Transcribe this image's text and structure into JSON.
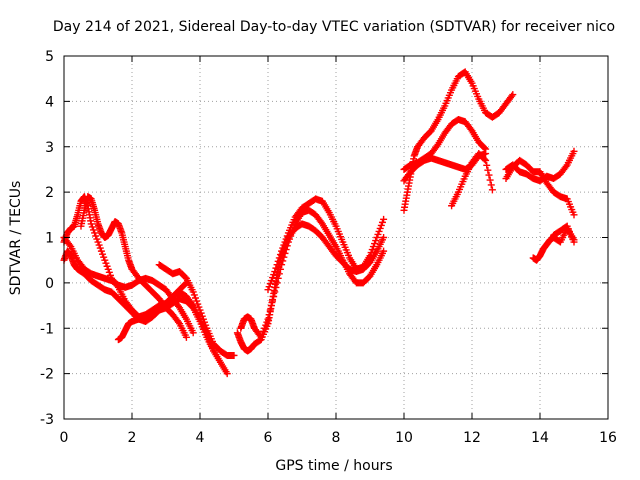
{
  "chart_data": {
    "type": "scatter",
    "title": "Day 214 of 2021, Sidereal Day-to-day VTEC variation (SDTVAR) for receiver nico",
    "xlabel": "GPS time / hours",
    "ylabel": "SDTVAR / TECUs",
    "xlim": [
      0,
      16
    ],
    "ylim": [
      -3,
      5
    ],
    "xticks": [
      "0",
      "2",
      "4",
      "6",
      "8",
      "10",
      "12",
      "14",
      "16"
    ],
    "yticks": [
      "-3",
      "-2",
      "-1",
      "0",
      "1",
      "2",
      "3",
      "4",
      "5"
    ],
    "grid": true,
    "legend": "none",
    "marker": "+",
    "color": "#ff0000",
    "series": [
      {
        "x": [
          0.0,
          0.1,
          0.2,
          0.3,
          0.4,
          0.5,
          0.6,
          0.7,
          0.8,
          1.0,
          1.2,
          1.4,
          1.6,
          1.8,
          2.0,
          2.2,
          2.4,
          2.6,
          2.8,
          3.0,
          3.2,
          3.4,
          3.6,
          3.8,
          4.0,
          4.2,
          4.4
        ],
        "y": [
          0.9,
          1.1,
          1.2,
          1.25,
          1.5,
          1.8,
          1.9,
          1.7,
          1.3,
          0.9,
          0.5,
          0.1,
          -0.1,
          -0.4,
          -0.6,
          -0.75,
          -0.7,
          -0.6,
          -0.5,
          -0.45,
          -0.3,
          -0.2,
          -0.3,
          -0.5,
          -0.8,
          -1.1,
          -1.5
        ]
      },
      {
        "x": [
          0.0,
          0.1,
          0.2,
          0.3,
          0.4,
          0.6,
          0.8,
          1.0,
          1.2,
          1.4,
          1.6,
          1.8,
          2.0,
          2.2,
          2.4,
          2.6,
          2.8,
          3.0,
          3.2,
          3.4,
          3.6
        ],
        "y": [
          0.5,
          0.7,
          0.6,
          0.4,
          0.3,
          0.2,
          0.05,
          -0.05,
          -0.15,
          -0.2,
          -0.35,
          -0.5,
          -0.65,
          -0.8,
          -0.85,
          -0.75,
          -0.6,
          -0.45,
          -0.3,
          -0.15,
          0.0
        ]
      },
      {
        "x": [
          0.0,
          0.2,
          0.4,
          0.6,
          0.8,
          1.0,
          1.2,
          1.4,
          1.6,
          1.8,
          2.0,
          2.2,
          2.4,
          2.6,
          2.8,
          3.0,
          3.2,
          3.4,
          3.6,
          3.8
        ],
        "y": [
          1.0,
          0.8,
          0.5,
          0.3,
          0.2,
          0.15,
          0.1,
          0.05,
          -0.05,
          -0.1,
          -0.05,
          0.05,
          0.1,
          0.05,
          -0.05,
          -0.15,
          -0.35,
          -0.55,
          -0.8,
          -1.1
        ]
      },
      {
        "x": [
          0.5,
          0.6,
          0.7,
          0.8,
          0.9,
          1.0,
          1.1,
          1.2,
          1.3,
          1.4,
          1.5,
          1.6,
          1.7,
          1.8,
          1.9,
          2.0,
          2.2,
          2.4,
          2.6,
          2.8,
          3.0,
          3.2,
          3.4,
          3.6
        ],
        "y": [
          1.25,
          1.6,
          1.9,
          1.85,
          1.6,
          1.3,
          1.1,
          1.0,
          1.05,
          1.2,
          1.35,
          1.3,
          1.1,
          0.8,
          0.5,
          0.3,
          0.1,
          -0.05,
          -0.2,
          -0.35,
          -0.55,
          -0.7,
          -0.9,
          -1.2
        ]
      },
      {
        "x": [
          1.6,
          1.7,
          1.8,
          1.9,
          2.0,
          2.2,
          2.4,
          2.6,
          2.8,
          3.0,
          3.2,
          3.4,
          3.6,
          3.8,
          4.0,
          4.2,
          4.4,
          4.6,
          4.8
        ],
        "y": [
          -1.25,
          -1.2,
          -1.05,
          -0.9,
          -0.85,
          -0.8,
          -0.75,
          -0.7,
          -0.6,
          -0.55,
          -0.45,
          -0.35,
          -0.4,
          -0.55,
          -0.85,
          -1.2,
          -1.5,
          -1.75,
          -2.0
        ]
      },
      {
        "x": [
          2.8,
          3.0,
          3.2,
          3.4,
          3.6,
          3.8,
          4.0,
          4.2,
          4.4,
          4.6,
          4.8,
          5.0
        ],
        "y": [
          0.4,
          0.3,
          0.2,
          0.25,
          0.1,
          -0.2,
          -0.6,
          -1.0,
          -1.35,
          -1.5,
          -1.6,
          -1.6
        ]
      },
      {
        "x": [
          5.1,
          5.2,
          5.3,
          5.4,
          5.5,
          5.6,
          5.8,
          6.0,
          6.1,
          6.2,
          6.3,
          6.4,
          6.5,
          6.6,
          6.8,
          7.0,
          7.2,
          7.4,
          7.6,
          7.8,
          8.0,
          8.2,
          8.4,
          8.6,
          8.8,
          9.0,
          9.2,
          9.4
        ],
        "y": [
          -1.1,
          -1.3,
          -1.45,
          -1.5,
          -1.45,
          -1.35,
          -1.25,
          -0.9,
          -0.5,
          -0.1,
          0.3,
          0.6,
          0.8,
          1.0,
          1.2,
          1.3,
          1.25,
          1.15,
          1.0,
          0.8,
          0.6,
          0.45,
          0.3,
          0.25,
          0.3,
          0.45,
          0.7,
          1.0
        ]
      },
      {
        "x": [
          5.2,
          5.3,
          5.4,
          5.5,
          5.6,
          5.8,
          6.0,
          6.2,
          6.4,
          6.6,
          6.8,
          7.0,
          7.2,
          7.4,
          7.6,
          7.8,
          8.0,
          8.2,
          8.4,
          8.6,
          8.8,
          9.0,
          9.2,
          9.4
        ],
        "y": [
          -1.0,
          -0.8,
          -0.75,
          -0.8,
          -1.0,
          -1.2,
          -0.8,
          -0.2,
          0.4,
          0.9,
          1.3,
          1.55,
          1.6,
          1.5,
          1.3,
          1.05,
          0.8,
          0.5,
          0.2,
          0.0,
          0.0,
          0.15,
          0.4,
          0.7
        ]
      },
      {
        "x": [
          6.0,
          6.2,
          6.4,
          6.6,
          6.8,
          7.0,
          7.2,
          7.4,
          7.6,
          7.8,
          8.0,
          8.2,
          8.4,
          8.6,
          8.8,
          9.0,
          9.2,
          9.4
        ],
        "y": [
          -0.15,
          0.25,
          0.7,
          1.1,
          1.45,
          1.65,
          1.75,
          1.85,
          1.8,
          1.55,
          1.25,
          0.9,
          0.55,
          0.3,
          0.35,
          0.6,
          1.0,
          1.4
        ]
      },
      {
        "x": [
          10.0,
          10.1,
          10.2,
          10.3,
          10.4,
          10.6,
          10.8,
          11.0,
          11.2,
          11.4,
          11.6,
          11.8,
          12.0,
          12.2,
          12.4,
          12.6,
          12.8,
          13.0,
          13.2
        ],
        "y": [
          1.6,
          2.0,
          2.4,
          2.8,
          3.0,
          3.2,
          3.35,
          3.6,
          3.9,
          4.25,
          4.55,
          4.65,
          4.4,
          4.05,
          3.75,
          3.65,
          3.75,
          3.95,
          4.15
        ]
      },
      {
        "x": [
          10.0,
          10.2,
          10.4,
          10.6,
          10.8,
          11.0,
          11.2,
          11.4,
          11.6,
          11.8,
          12.0,
          12.2,
          12.4
        ],
        "y": [
          2.5,
          2.6,
          2.65,
          2.75,
          2.85,
          3.05,
          3.3,
          3.5,
          3.6,
          3.55,
          3.35,
          3.1,
          2.95
        ]
      },
      {
        "x": [
          10.0,
          10.2,
          10.4,
          10.6,
          10.8,
          11.0,
          11.2,
          11.4,
          11.6,
          11.8,
          12.0,
          12.2,
          12.4
        ],
        "y": [
          2.25,
          2.45,
          2.6,
          2.7,
          2.75,
          2.7,
          2.65,
          2.6,
          2.55,
          2.5,
          2.6,
          2.8,
          2.85
        ]
      },
      {
        "x": [
          11.4,
          11.6,
          11.8,
          12.0,
          12.2,
          12.4,
          12.6
        ],
        "y": [
          1.7,
          2.0,
          2.35,
          2.65,
          2.85,
          2.7,
          2.05
        ]
      },
      {
        "x": [
          13.0,
          13.2,
          13.4,
          13.6,
          13.8,
          14.0,
          14.2,
          14.4,
          14.6,
          14.8,
          15.0
        ],
        "y": [
          2.5,
          2.6,
          2.45,
          2.4,
          2.3,
          2.25,
          2.35,
          2.3,
          2.4,
          2.6,
          2.9
        ]
      },
      {
        "x": [
          13.0,
          13.2,
          13.4,
          13.6,
          13.8,
          14.0,
          14.2,
          14.4,
          14.6,
          14.8,
          15.0
        ],
        "y": [
          2.3,
          2.55,
          2.7,
          2.6,
          2.45,
          2.45,
          2.2,
          2.0,
          1.9,
          1.85,
          1.5
        ]
      },
      {
        "x": [
          13.8,
          13.9,
          14.0,
          14.1,
          14.2,
          14.3,
          14.4,
          14.6,
          14.8,
          15.0
        ],
        "y": [
          0.55,
          0.5,
          0.6,
          0.75,
          0.85,
          0.95,
          1.0,
          0.9,
          1.2,
          0.95
        ]
      },
      {
        "x": [
          14.4,
          14.6,
          14.8,
          15.0
        ],
        "y": [
          1.05,
          1.15,
          1.25,
          0.9
        ]
      }
    ]
  }
}
